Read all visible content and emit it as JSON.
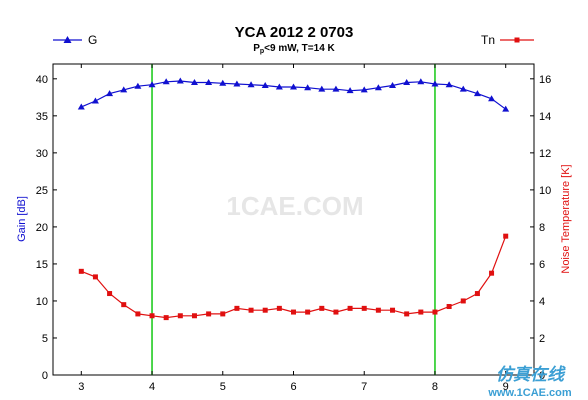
{
  "chart_data": {
    "type": "line",
    "title": "YCA 2012 2 0703",
    "subtitle_main": "P",
    "subtitle_sub": "p",
    "subtitle_rest": "<9 mW, T=14 K",
    "ylabel_left": "Gain [dB]",
    "ylabel_right": "Noise Temperature [K]",
    "xlim": [
      2.6,
      9.4
    ],
    "ylim_left": [
      0,
      42
    ],
    "ylim_right": [
      0,
      16.8
    ],
    "xticks": [
      "3",
      "4",
      "5",
      "6",
      "7",
      "8",
      "9"
    ],
    "yticks_left": [
      "0",
      "5",
      "10",
      "15",
      "20",
      "25",
      "30",
      "35",
      "40"
    ],
    "yticks_right": [
      "0",
      "2",
      "4",
      "6",
      "8",
      "10",
      "12",
      "14",
      "16"
    ],
    "vlines": [
      4,
      8
    ],
    "legend_left": "G",
    "legend_right": "Tn",
    "series": [
      {
        "name": "G",
        "axis": "left",
        "color": "#1010d0",
        "marker": "triangle",
        "x": [
          3.0,
          3.2,
          3.4,
          3.6,
          3.8,
          4.0,
          4.2,
          4.4,
          4.6,
          4.8,
          5.0,
          5.2,
          5.4,
          5.6,
          5.8,
          6.0,
          6.2,
          6.4,
          6.6,
          6.8,
          7.0,
          7.2,
          7.4,
          7.6,
          7.8,
          8.0,
          8.2,
          8.4,
          8.6,
          8.8,
          9.0
        ],
        "values": [
          36.2,
          37.0,
          38.0,
          38.5,
          39.0,
          39.2,
          39.6,
          39.7,
          39.5,
          39.5,
          39.4,
          39.3,
          39.2,
          39.1,
          38.9,
          38.9,
          38.8,
          38.6,
          38.6,
          38.4,
          38.5,
          38.8,
          39.1,
          39.5,
          39.6,
          39.3,
          39.2,
          38.6,
          38.0,
          37.3,
          35.9
        ]
      },
      {
        "name": "Tn",
        "axis": "right",
        "color": "#e01010",
        "marker": "square",
        "x": [
          3.0,
          3.2,
          3.4,
          3.6,
          3.8,
          4.0,
          4.2,
          4.4,
          4.6,
          4.8,
          5.0,
          5.2,
          5.4,
          5.6,
          5.8,
          6.0,
          6.2,
          6.4,
          6.6,
          6.8,
          7.0,
          7.2,
          7.4,
          7.6,
          7.8,
          8.0,
          8.2,
          8.4,
          8.6,
          8.8,
          9.0
        ],
        "values": [
          5.6,
          5.3,
          4.4,
          3.8,
          3.3,
          3.2,
          3.1,
          3.2,
          3.2,
          3.3,
          3.3,
          3.6,
          3.5,
          3.5,
          3.6,
          3.4,
          3.4,
          3.6,
          3.4,
          3.6,
          3.6,
          3.5,
          3.5,
          3.3,
          3.4,
          3.4,
          3.7,
          4.0,
          4.4,
          5.5,
          7.5
        ]
      }
    ]
  },
  "watermark": {
    "center": "1CAE.COM",
    "corner_top": "仿真在线",
    "corner_bottom": "www.1CAE.com"
  }
}
